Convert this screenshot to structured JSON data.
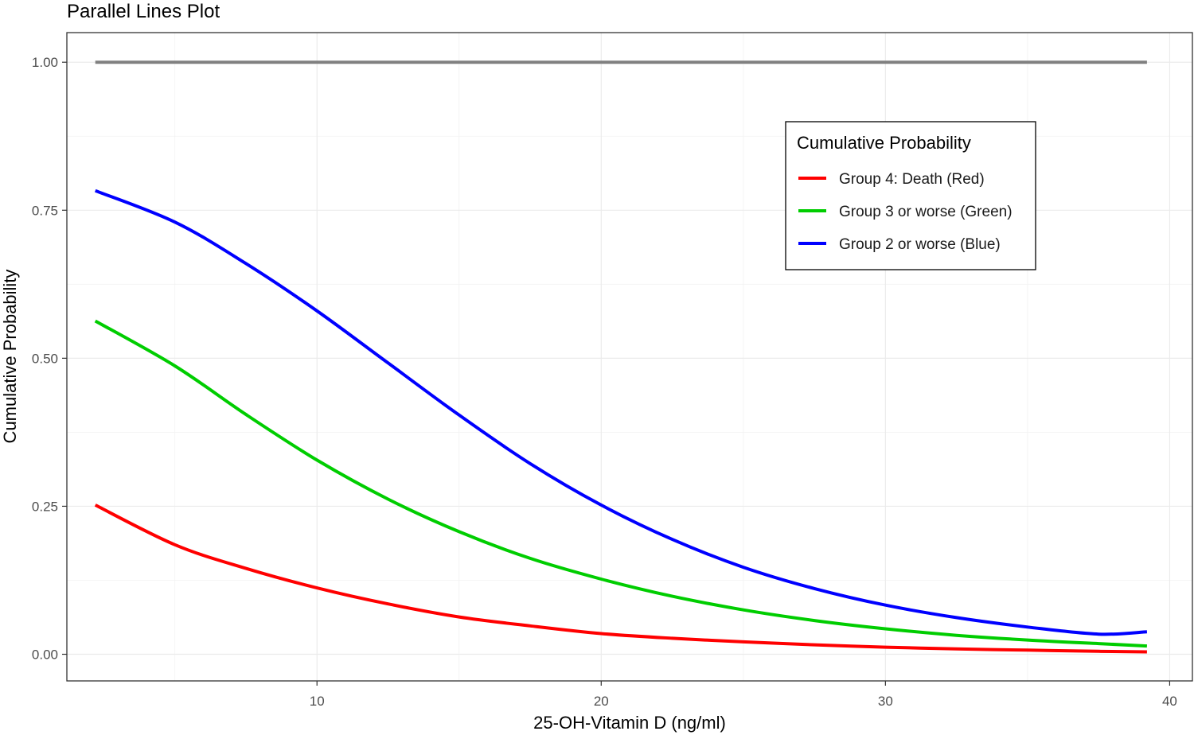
{
  "chart_data": {
    "type": "line",
    "title": "Parallel Lines Plot",
    "xlabel": "25-OH-Vitamin D (ng/ml)",
    "ylabel": "Cumulative Probability",
    "xlim": [
      1.2,
      40.8
    ],
    "ylim": [
      -0.045,
      1.05
    ],
    "x_ticks": [
      {
        "value": 10,
        "label": "10"
      },
      {
        "value": 20,
        "label": "20"
      },
      {
        "value": 30,
        "label": "30"
      },
      {
        "value": 40,
        "label": "40"
      }
    ],
    "y_ticks": [
      {
        "value": 0,
        "label": "0.00"
      },
      {
        "value": 0.25,
        "label": "0.25"
      },
      {
        "value": 0.5,
        "label": "0.50"
      },
      {
        "value": 0.75,
        "label": "0.75"
      },
      {
        "value": 1,
        "label": "1.00"
      }
    ],
    "grid": true,
    "legend": {
      "title": "Cumulative Probability",
      "position": "top-right"
    },
    "series": [
      {
        "name": "Group 4: Death (Red)",
        "color": "#ff0000",
        "in_legend": true,
        "x": [
          2.2,
          5,
          7.5,
          10,
          12.5,
          15,
          17.5,
          20,
          22.5,
          25,
          27.5,
          30,
          32.5,
          35,
          37.5,
          39.2
        ],
        "y": [
          0.252,
          0.185,
          0.145,
          0.112,
          0.085,
          0.063,
          0.048,
          0.035,
          0.027,
          0.021,
          0.016,
          0.012,
          0.009,
          0.007,
          0.005,
          0.004
        ]
      },
      {
        "name": "Group 3 or worse (Green)",
        "color": "#00cd00",
        "in_legend": true,
        "x": [
          2.2,
          5,
          7.5,
          10,
          12.5,
          15,
          17.5,
          20,
          22.5,
          25,
          27.5,
          30,
          32.5,
          35,
          37.5,
          39.2
        ],
        "y": [
          0.563,
          0.487,
          0.405,
          0.328,
          0.262,
          0.207,
          0.162,
          0.127,
          0.098,
          0.075,
          0.057,
          0.043,
          0.032,
          0.024,
          0.018,
          0.014
        ]
      },
      {
        "name": "Group 2 or worse (Blue)",
        "color": "#0000ff",
        "in_legend": true,
        "x": [
          2.2,
          5,
          7.5,
          10,
          12.5,
          15,
          17.5,
          20,
          22.5,
          25,
          27.5,
          30,
          32.5,
          35,
          37.5,
          39.2
        ],
        "y": [
          0.783,
          0.73,
          0.66,
          0.58,
          0.492,
          0.404,
          0.322,
          0.252,
          0.194,
          0.147,
          0.111,
          0.083,
          0.062,
          0.046,
          0.034,
          0.038
        ]
      },
      {
        "name": "",
        "color": "#808080",
        "in_legend": false,
        "x": [
          2.2,
          39.2
        ],
        "y": [
          1.0,
          1.0
        ]
      }
    ]
  }
}
